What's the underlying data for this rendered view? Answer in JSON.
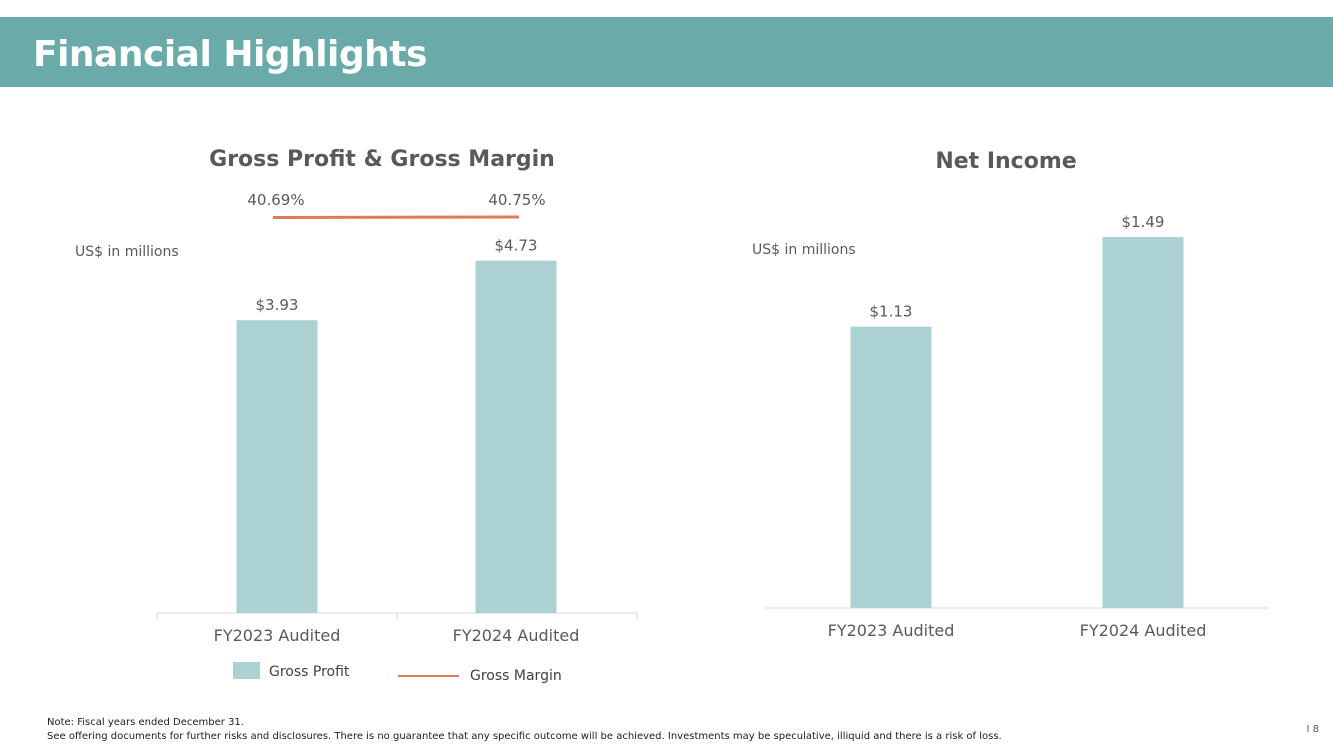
{
  "slide": {
    "title": "Financial Highlights",
    "page_number": "I 8",
    "footer_note_line1": "Note: Fiscal years ended December 31.",
    "footer_note_line2": "See offering documents for further risks and disclosures. There is no guarantee that any specific outcome will be achieved. Investments may be speculative, illiquid and there is a risk of loss."
  },
  "colors": {
    "header_band": "#6aaaa8",
    "bar": "#acd1d3",
    "margin_line": "#e07b58",
    "axis": "#d9d9d9"
  },
  "chart_data": [
    {
      "type": "bar",
      "title": "Gross Profit & Gross Margin",
      "unit_label": "US$ in millions",
      "categories": [
        "FY2023 Audited",
        "FY2024 Audited"
      ],
      "series": [
        {
          "name": "Gross Profit",
          "values": [
            3.93,
            4.73
          ],
          "value_labels": [
            "$3.93",
            "$4.73"
          ]
        },
        {
          "name": "Gross Margin",
          "type": "line",
          "values": [
            40.69,
            40.75
          ],
          "value_labels": [
            "40.69%",
            "40.75%"
          ]
        }
      ],
      "legend": {
        "position": "bottom",
        "items": [
          "Gross Profit",
          "Gross Margin"
        ]
      },
      "grid": false
    },
    {
      "type": "bar",
      "title": "Net Income",
      "unit_label": "US$ in millions",
      "categories": [
        "FY2023 Audited",
        "FY2024 Audited"
      ],
      "series": [
        {
          "values": [
            1.13,
            1.49
          ],
          "value_labels": [
            "$1.13",
            "$1.49"
          ]
        }
      ],
      "grid": false
    }
  ]
}
